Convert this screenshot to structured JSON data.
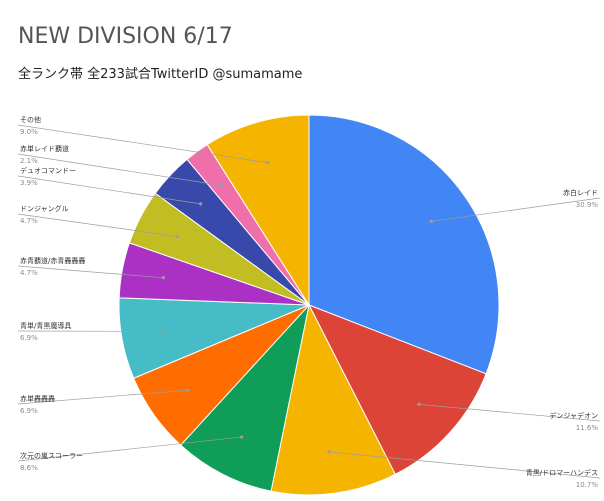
{
  "chart_data": {
    "type": "pie",
    "title": "NEW DIVISION 6/17",
    "subtitle": "全ランク帯 全233試合TwitterID @sumamame",
    "slices": [
      {
        "label": "赤白レイド",
        "percent_label": "30.9%",
        "value": 30.9,
        "color": "#4285F4"
      },
      {
        "label": "デンジャデオン",
        "percent_label": "11.6%",
        "value": 11.6,
        "color": "#DB4437"
      },
      {
        "label": "青黒/ドロマーハンデス",
        "percent_label": "10.7%",
        "value": 10.7,
        "color": "#F4B400"
      },
      {
        "label": "次元の嵐スコーラー",
        "percent_label": "8.6%",
        "value": 8.6,
        "color": "#0F9D58"
      },
      {
        "label": "赤単轟轟轟",
        "percent_label": "6.9%",
        "value": 6.9,
        "color": "#FF6D01"
      },
      {
        "label": "青単/青黒魔導具",
        "percent_label": "6.9%",
        "value": 6.9,
        "color": "#46BDC6"
      },
      {
        "label": "赤青覇道/赤青轟轟轟",
        "percent_label": "4.7%",
        "value": 4.7,
        "color": "#AB30C4"
      },
      {
        "label": "ドンジャングル",
        "percent_label": "4.7%",
        "value": 4.7,
        "color": "#C2BD22"
      },
      {
        "label": "デュオコマンドー",
        "percent_label": "3.9%",
        "value": 3.9,
        "color": "#3949AB"
      },
      {
        "label": "赤単レイド覇道",
        "percent_label": "2.1%",
        "value": 2.1,
        "color": "#F06EAA"
      },
      {
        "label": "その他",
        "percent_label": "9.0%",
        "value": 9.0,
        "color": "#F4B400"
      }
    ]
  }
}
